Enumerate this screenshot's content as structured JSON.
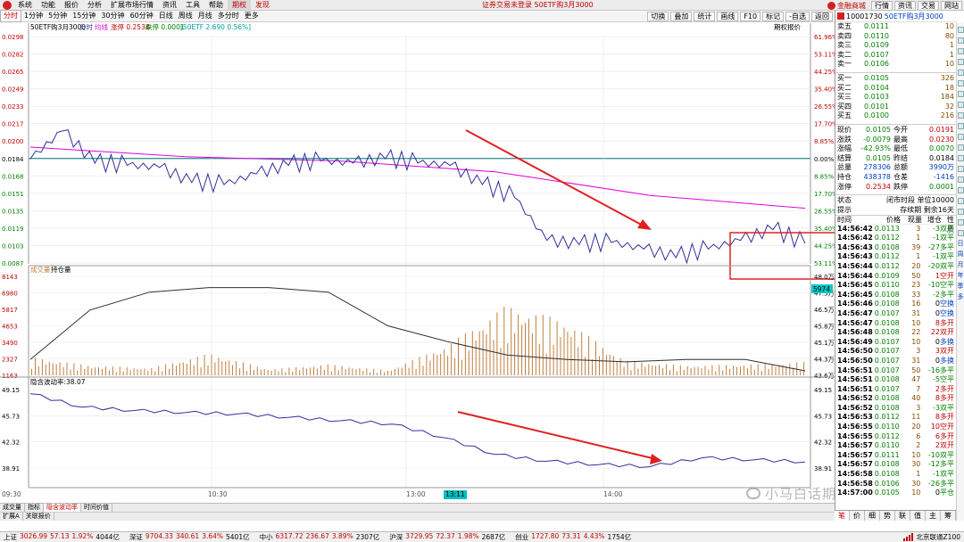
{
  "menubar": {
    "items": [
      "系统",
      "功能",
      "报价",
      "分析",
      "扩展市场行情",
      "资讯",
      "工具",
      "帮助",
      "期权",
      "发现"
    ],
    "active_index": 8,
    "highlight_index": 9,
    "title": "证券交易未登录  50ETF购3月3000",
    "brand": "金融商城",
    "right_buttons": [
      "行情",
      "资讯",
      "交易",
      "网站"
    ]
  },
  "periodbar": {
    "items": [
      "分时",
      "1分钟",
      "5分钟",
      "15分钟",
      "30分钟",
      "60分钟",
      "日线",
      "周线",
      "月线",
      "多分时",
      "更多"
    ],
    "selected_index": 0,
    "tools": [
      "切换",
      "叠加",
      "统计",
      "画线",
      "F10",
      "标记",
      "-自选",
      "返回"
    ]
  },
  "chart": {
    "instrument": "50ETF购3月3000",
    "legend_price": "分时",
    "legend_avg": "均线",
    "legend_chg": "涨停 0.2534",
    "legend_lim": "跌停 0.0001",
    "legend_ref": "[50ETF 2.690 0.56%]",
    "option_quote": "期权报价",
    "left_axis": [
      "0.0298",
      "0.0282",
      "0.0265",
      "0.0249",
      "0.0233",
      "0.0217",
      "0.0200",
      "0.0184",
      "0.0168",
      "0.0151",
      "0.0135",
      "0.0119",
      "0.0103",
      "0.0087"
    ],
    "right_axis": [
      "61.96%",
      "53.11%",
      "44.25%",
      "35.40%",
      "26.55%",
      "17.70%",
      "8.85%",
      "0.00%",
      "8.85%",
      "17.70%",
      "26.55%",
      "35.40%",
      "44.25%",
      "53.11%"
    ],
    "vol_label_a": "成交量",
    "vol_label_b": "持仓量",
    "vol_left_axis": [
      "8143",
      "6980",
      "5817",
      "4653",
      "3490",
      "2327",
      "1163"
    ],
    "vol_right_axis": [
      "48.0万",
      "47.5万",
      "46.5万",
      "45.8万",
      "45.1万",
      "44.3万",
      "43.6万"
    ],
    "vol_cursor": "5974",
    "iv_label": "隐含波动率:38.07",
    "iv_axis": [
      "49.15",
      "45.73",
      "42.32",
      "38.91"
    ],
    "time_axis": [
      "09:30",
      "10:30",
      "13:00",
      "14:00"
    ],
    "time_cursor": "13:11",
    "colors": {
      "price": "#30309a",
      "avg": "#e000e0",
      "prev": "#2a8a8a",
      "arrow": "#e02020",
      "highlight": "#e02020",
      "vol": "#c08040",
      "oi": "#303030",
      "iv": "#30309a"
    }
  },
  "chart_data": [
    {
      "type": "line",
      "title": "",
      "series": [
        {
          "name": "分时",
          "x": [
            "09:30",
            "09:40",
            "09:50",
            "10:00",
            "10:10",
            "10:20",
            "10:30",
            "10:40",
            "10:50",
            "11:00",
            "11:10",
            "11:20",
            "11:30",
            "13:10",
            "13:20",
            "13:30",
            "13:40",
            "13:50",
            "14:00",
            "14:10",
            "14:20",
            "14:30",
            "14:40",
            "14:50",
            "14:56"
          ],
          "values": [
            0.0184,
            0.021,
            0.018,
            0.0178,
            0.0176,
            0.0162,
            0.016,
            0.017,
            0.0178,
            0.0182,
            0.018,
            0.0184,
            0.018,
            0.0178,
            0.016,
            0.0148,
            0.0108,
            0.0104,
            0.0106,
            0.01,
            0.0092,
            0.01,
            0.0108,
            0.0118,
            0.0105
          ]
        },
        {
          "name": "均线",
          "x": [
            "09:30",
            "10:30",
            "11:30",
            "13:30",
            "14:30",
            "14:56"
          ],
          "values": [
            0.0195,
            0.0186,
            0.0182,
            0.0172,
            0.015,
            0.0138
          ]
        }
      ],
      "ylim": [
        0.0087,
        0.0298
      ]
    },
    {
      "type": "bar",
      "series": [
        {
          "name": "成交量",
          "values": [
            1500,
            800,
            600,
            1800,
            500,
            900,
            400,
            2500,
            5800,
            4500,
            1200,
            800,
            900,
            1100
          ]
        },
        {
          "name": "持仓量",
          "values": [
            44.3,
            46.5,
            47.3,
            47.5,
            47.5,
            47.3,
            45.8,
            45.1,
            44.5,
            44.3,
            44.2,
            44.3,
            44.3,
            43.8
          ]
        }
      ],
      "ylim": [
        0,
        8143
      ]
    },
    {
      "type": "line",
      "series": [
        {
          "name": "隐含波动率",
          "values": [
            49.0,
            47.0,
            46.5,
            46.2,
            46.0,
            45.5,
            45.0,
            44.5,
            42.5,
            40.0,
            39.0,
            38.5,
            38.2,
            39.5,
            39.2,
            38.9
          ]
        }
      ],
      "ylim": [
        38.0,
        49.15
      ]
    }
  ],
  "quote": {
    "code": "10001730",
    "name": "50ETF购3月3000",
    "asks": [
      {
        "label": "卖五",
        "price": "0.0111",
        "vol": "10"
      },
      {
        "label": "卖四",
        "price": "0.0110",
        "vol": "80"
      },
      {
        "label": "卖三",
        "price": "0.0109",
        "vol": "1"
      },
      {
        "label": "卖二",
        "price": "0.0107",
        "vol": "1"
      },
      {
        "label": "卖一",
        "price": "0.0106",
        "vol": "10"
      }
    ],
    "bids": [
      {
        "label": "买一",
        "price": "0.0105",
        "vol": "326"
      },
      {
        "label": "买二",
        "price": "0.0104",
        "vol": "18"
      },
      {
        "label": "买三",
        "price": "0.0103",
        "vol": "184"
      },
      {
        "label": "买四",
        "price": "0.0101",
        "vol": "32"
      },
      {
        "label": "买五",
        "price": "0.0100",
        "vol": "216"
      }
    ],
    "stats": [
      {
        "a": "现价",
        "b": "0.0105",
        "c": "今开",
        "d": "0.0191"
      },
      {
        "a": "涨跌",
        "b": "-0.0079",
        "c": "最高",
        "d": "0.0230"
      },
      {
        "a": "涨幅",
        "b": "-42.93%",
        "c": "最低",
        "d": "0.0070"
      },
      {
        "a": "结算",
        "b": "0.0105",
        "c": "昨结",
        "d": "0.0184"
      },
      {
        "a": "总量",
        "b": "278306",
        "c": "总额",
        "d": "3990万"
      },
      {
        "a": "持仓",
        "b": "438378",
        "c": "仓差",
        "d": "-1416"
      },
      {
        "a": "涨停",
        "b": "0.2534",
        "c": "跌停",
        "d": "0.0001"
      }
    ],
    "state_label": "状态",
    "state_value": "闭市时段  单位10000",
    "hint_label": "提示",
    "hint_value": "存续期 剩余16天",
    "tick_headers": [
      "时间",
      "价格",
      "现量",
      "增仓",
      "性质"
    ],
    "ticks": [
      [
        "14:56:42",
        "0.0113",
        "3",
        "-3",
        "双平"
      ],
      [
        "14:56:42",
        "0.0112",
        "1",
        "-1",
        "双平"
      ],
      [
        "14:56:43",
        "0.0108",
        "39",
        "-27",
        "多平"
      ],
      [
        "14:56:43",
        "0.0112",
        "1",
        "-1",
        "双平"
      ],
      [
        "14:56:44",
        "0.0112",
        "20",
        "-20",
        "双平"
      ],
      [
        "14:56:44",
        "0.0109",
        "50",
        "1",
        "空开"
      ],
      [
        "14:56:45",
        "0.0110",
        "23",
        "-10",
        "空平"
      ],
      [
        "14:56:45",
        "0.0108",
        "33",
        "-2",
        "多平"
      ],
      [
        "14:56:46",
        "0.0108",
        "16",
        "0",
        "空换"
      ],
      [
        "14:56:47",
        "0.0107",
        "31",
        "0",
        "空换"
      ],
      [
        "14:56:47",
        "0.0108",
        "10",
        "8",
        "多开"
      ],
      [
        "14:56:48",
        "0.0108",
        "22",
        "22",
        "双开"
      ],
      [
        "14:56:49",
        "0.0107",
        "10",
        "0",
        "多换"
      ],
      [
        "14:56:50",
        "0.0107",
        "3",
        "3",
        "双开"
      ],
      [
        "14:56:50",
        "0.0107",
        "31",
        "0",
        "多换"
      ],
      [
        "14:56:51",
        "0.0107",
        "50",
        "-16",
        "多平"
      ],
      [
        "14:56:51",
        "0.0108",
        "47",
        "-5",
        "空平"
      ],
      [
        "14:56:51",
        "0.0107",
        "7",
        "2",
        "多开"
      ],
      [
        "14:56:52",
        "0.0108",
        "40",
        "8",
        "多开"
      ],
      [
        "14:56:52",
        "0.0108",
        "3",
        "-3",
        "双平"
      ],
      [
        "14:56:53",
        "0.0112",
        "11",
        "8",
        "多开"
      ],
      [
        "14:56:55",
        "0.0110",
        "20",
        "10",
        "空开"
      ],
      [
        "14:56:55",
        "0.0112",
        "6",
        "6",
        "多开"
      ],
      [
        "14:56:57",
        "0.0110",
        "2",
        "2",
        "双开"
      ],
      [
        "14:56:57",
        "0.0111",
        "10",
        "-10",
        "双平"
      ],
      [
        "14:56:57",
        "0.0108",
        "30",
        "-12",
        "多平"
      ],
      [
        "14:56:58",
        "0.0108",
        "1",
        "-1",
        "双平"
      ],
      [
        "14:56:58",
        "0.0106",
        "30",
        "-26",
        "多平"
      ],
      [
        "14:57:00",
        "0.0105",
        "10",
        "0",
        "平仓"
      ]
    ],
    "tabs": [
      "笔",
      "价",
      "细",
      "势",
      "联",
      "值",
      "主",
      "筹"
    ]
  },
  "sidebar": {
    "labels": [
      "日",
      "周",
      "月",
      "年",
      "季",
      "多"
    ]
  },
  "bottom": {
    "tabs1": [
      "成交量",
      "指标",
      "隐含波动率",
      "时间价值"
    ],
    "tabs1_selected": 2,
    "tabs2": [
      "扩展A",
      "关联报价"
    ]
  },
  "status": {
    "indices": [
      {
        "name": "上证",
        "val": "3026.99",
        "chg": "57.13",
        "pct": "1.92%",
        "amt": "4044亿"
      },
      {
        "name": "深证",
        "val": "9704.33",
        "chg": "340.61",
        "pct": "3.64%",
        "amt": "5401亿"
      },
      {
        "name": "中小",
        "val": "6317.72",
        "chg": "236.67",
        "pct": "3.89%",
        "amt": "2307亿"
      },
      {
        "name": "沪深",
        "val": "3729.95",
        "chg": "72.37",
        "pct": "1.98%",
        "amt": "2687亿"
      },
      {
        "name": "创业",
        "val": "1727.80",
        "chg": "73.31",
        "pct": "4.43%",
        "amt": "1754亿"
      }
    ],
    "server": "北京联通Z100"
  },
  "watermark": "小马白话期权"
}
